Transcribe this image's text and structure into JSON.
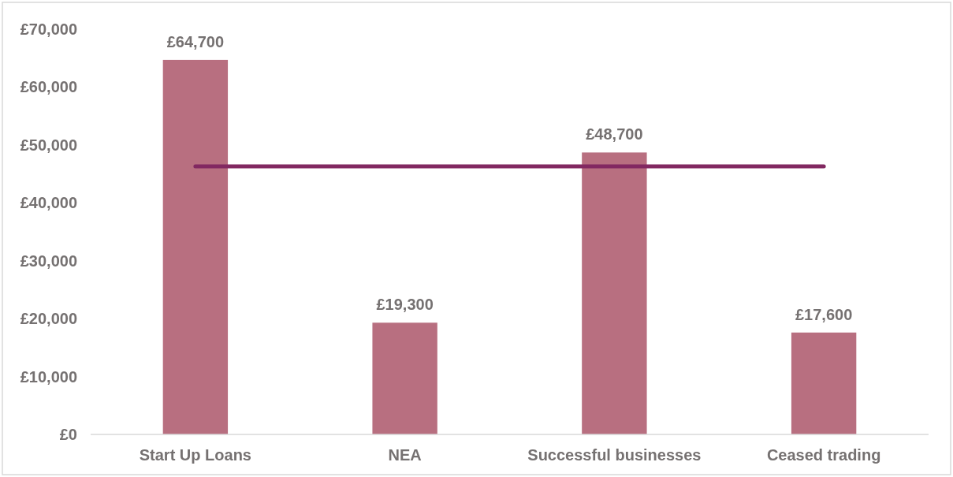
{
  "chart_data": {
    "type": "bar",
    "categories": [
      "Start Up Loans",
      "NEA",
      "Successful businesses",
      "Ceased trading"
    ],
    "series": [
      {
        "color": "#b86f80",
        "values": [
          64700,
          19300,
          48700,
          17600
        ],
        "value_labels": [
          "£64,700",
          "£19,300",
          "£48,700",
          "£17,600"
        ]
      },
      {
        "type": "line",
        "color": "#822861",
        "values": [
          46300,
          46300,
          46300,
          46300
        ],
        "marker": "none"
      }
    ],
    "ylim": [
      0,
      70000
    ],
    "yticks": [
      {
        "value": 0,
        "label": "£0"
      },
      {
        "value": 10000,
        "label": "£10,000"
      },
      {
        "value": 20000,
        "label": "£20,000"
      },
      {
        "value": 30000,
        "label": "£30,000"
      },
      {
        "value": 40000,
        "label": "£40,000"
      },
      {
        "value": 50000,
        "label": "£50,000"
      },
      {
        "value": 60000,
        "label": "£60,000"
      },
      {
        "value": 70000,
        "label": "£70,000"
      }
    ],
    "grid": false
  }
}
